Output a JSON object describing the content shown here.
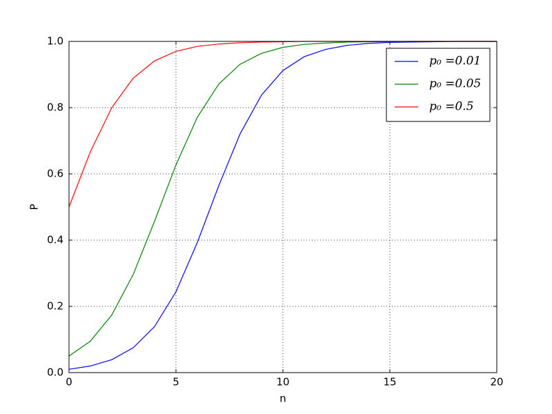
{
  "chart_data": {
    "type": "line",
    "xlabel": "n",
    "ylabel": "P",
    "x": [
      0,
      1,
      2,
      3,
      4,
      5,
      6,
      7,
      8,
      9,
      10,
      11,
      12,
      13,
      14,
      15,
      16,
      17,
      18,
      19,
      20
    ],
    "series": [
      {
        "name": "p₀ =0.01",
        "color": "#0000ff",
        "values": [
          0.01,
          0.02,
          0.039,
          0.075,
          0.139,
          0.244,
          0.393,
          0.564,
          0.721,
          0.838,
          0.912,
          0.954,
          0.976,
          0.988,
          0.994,
          0.997,
          0.998,
          0.999,
          1.0,
          1.0,
          1.0
        ]
      },
      {
        "name": "p₀ =0.05",
        "color": "#008000",
        "values": [
          0.05,
          0.095,
          0.174,
          0.296,
          0.457,
          0.627,
          0.771,
          0.871,
          0.931,
          0.964,
          0.982,
          0.991,
          0.995,
          0.998,
          0.999,
          0.999,
          1.0,
          1.0,
          1.0,
          1.0,
          1.0
        ]
      },
      {
        "name": "p₀ =0.5",
        "color": "#ff0000",
        "values": [
          0.5,
          0.667,
          0.8,
          0.889,
          0.941,
          0.97,
          0.985,
          0.992,
          0.996,
          0.998,
          0.999,
          1.0,
          1.0,
          1.0,
          1.0,
          1.0,
          1.0,
          1.0,
          1.0,
          1.0,
          1.0
        ]
      }
    ],
    "xlim": [
      0,
      20
    ],
    "xticks": [
      0,
      5,
      10,
      15,
      20
    ],
    "ylim": [
      0,
      1
    ],
    "yticks": [
      {
        "value": 0,
        "label": "0.0"
      },
      {
        "value": 0.2,
        "label": "0.2"
      },
      {
        "value": 0.4,
        "label": "0.4"
      },
      {
        "value": 0.6,
        "label": "0.6"
      },
      {
        "value": 0.8,
        "label": "0.8"
      },
      {
        "value": 1,
        "label": "1.0"
      }
    ],
    "grid": true,
    "legend": "upper right"
  }
}
